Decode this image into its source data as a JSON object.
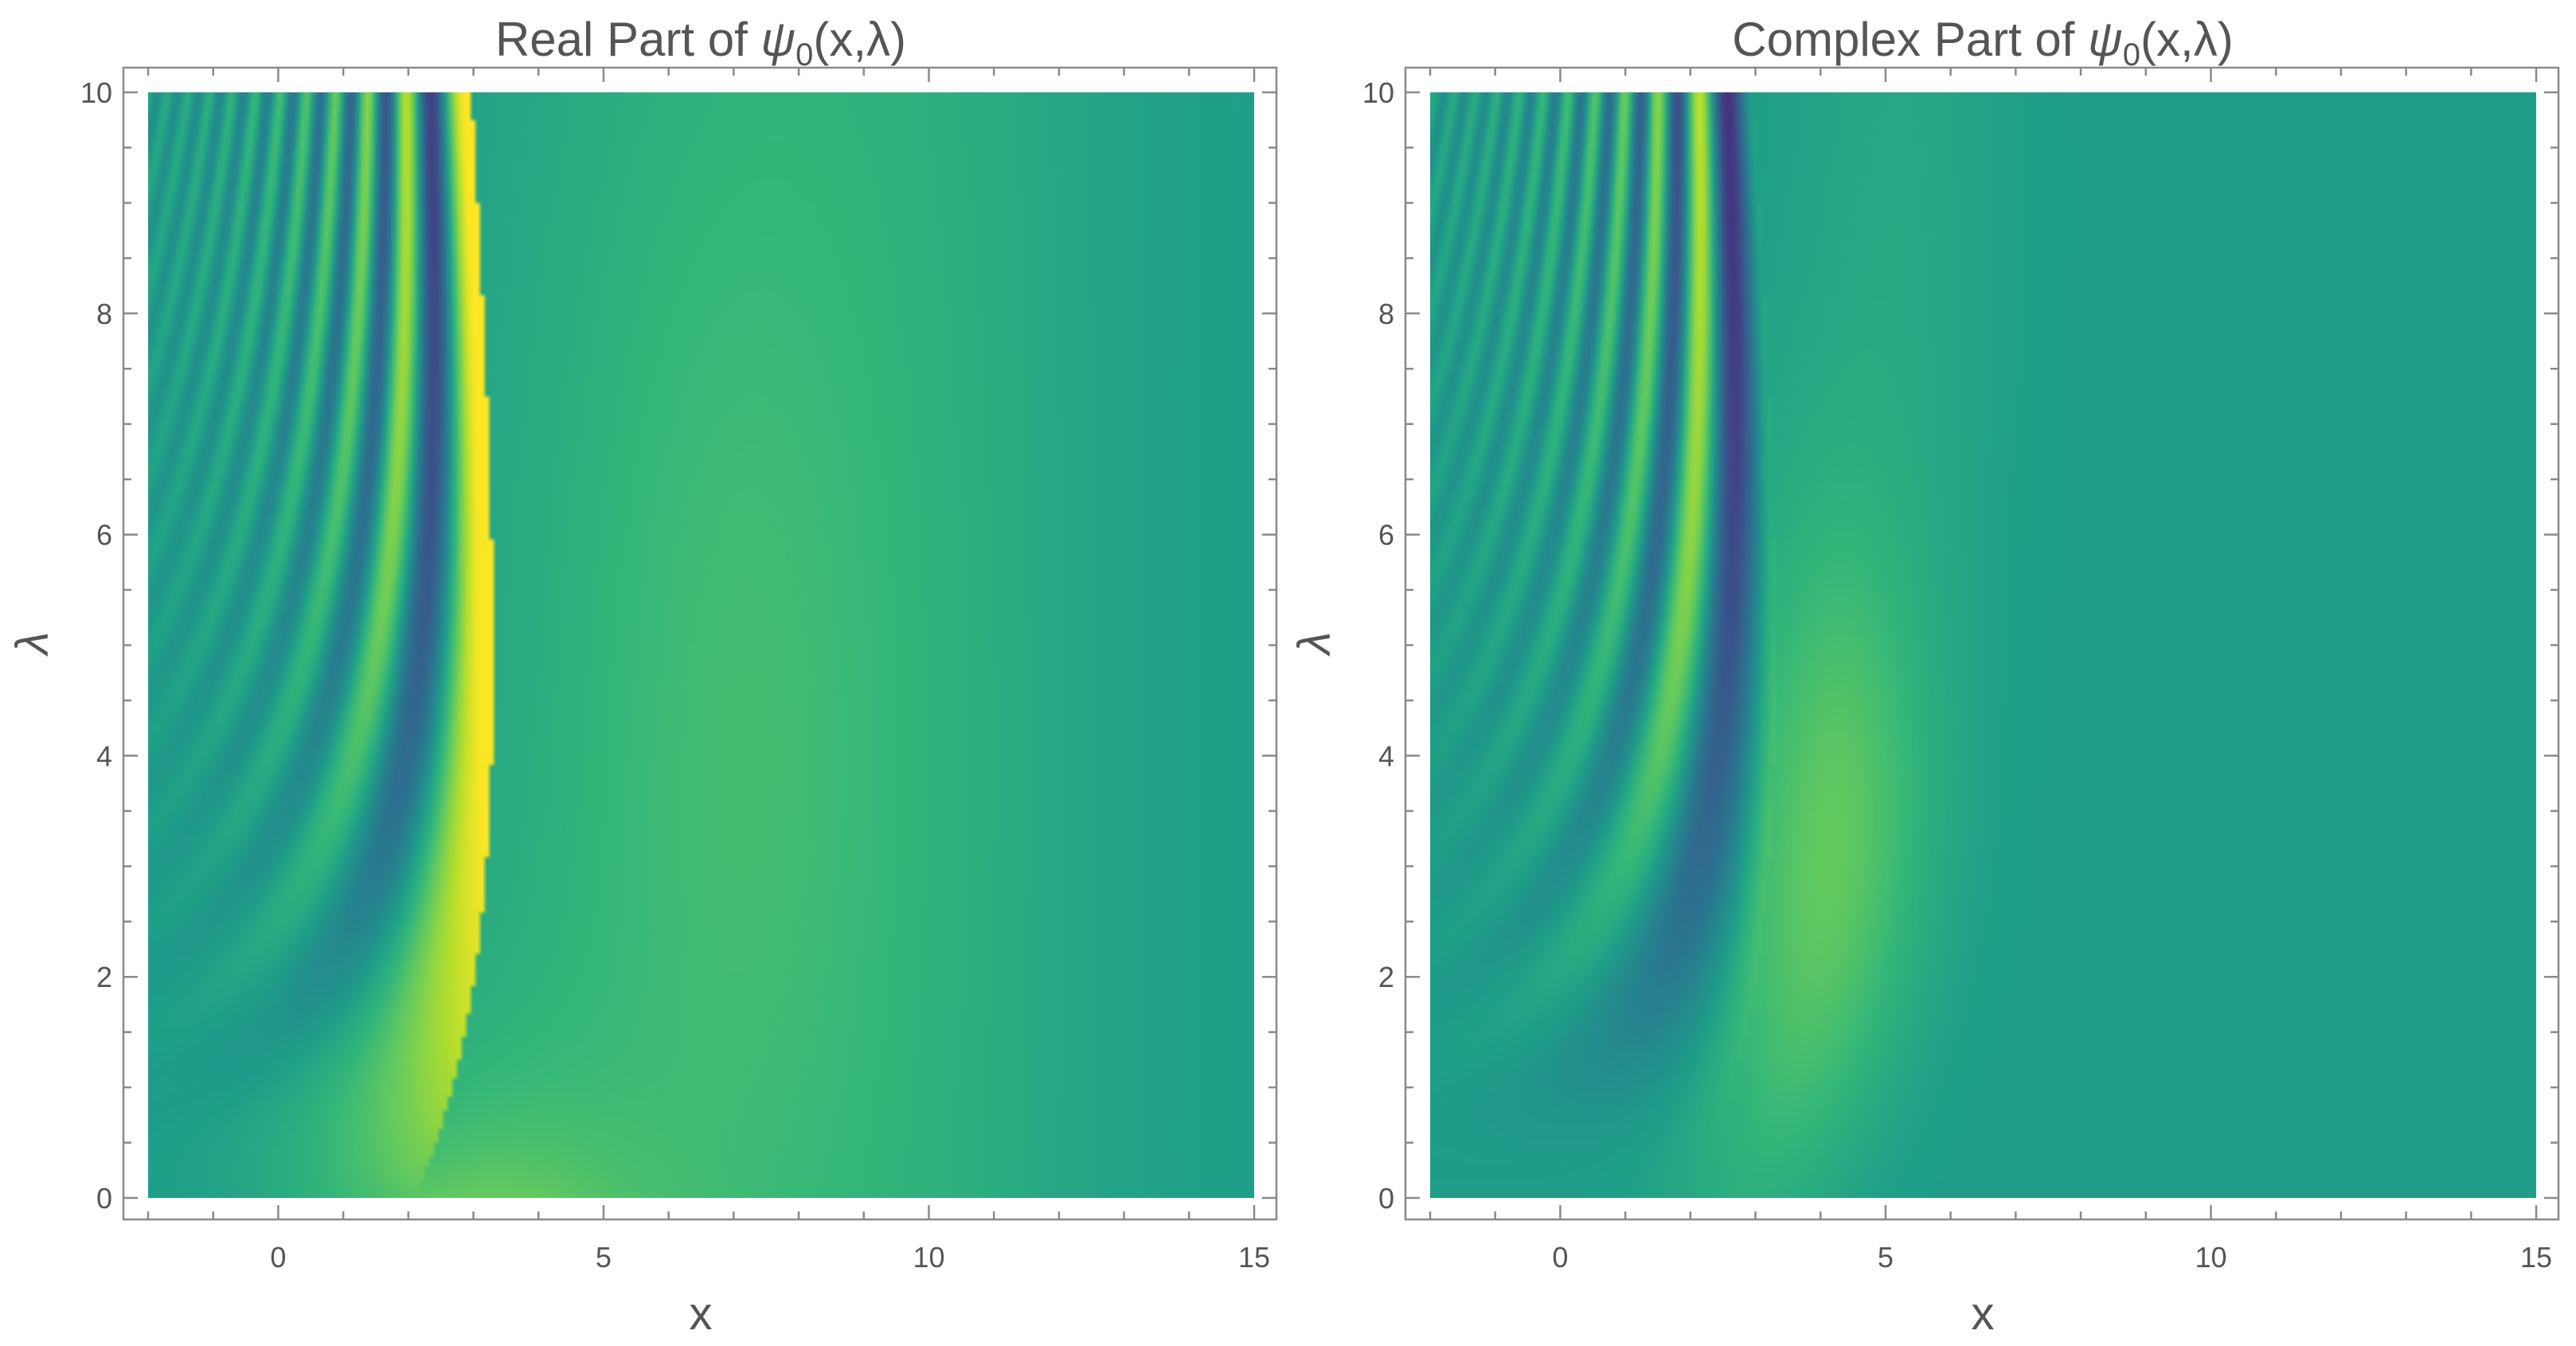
{
  "chart_data": [
    {
      "type": "heatmap",
      "title_prefix": "Real Part of ",
      "title_math": "ψ",
      "title_sub": "0",
      "title_suffix": "(x,λ)",
      "xlabel": "x",
      "ylabel": "λ",
      "xlim": [
        -2,
        15
      ],
      "ylim": [
        0,
        10
      ],
      "x_ticks": [
        "0",
        "5",
        "10",
        "15"
      ],
      "y_ticks": [
        "0",
        "2",
        "4",
        "6",
        "8",
        "10"
      ],
      "colormap": "viridis",
      "component": "real"
    },
    {
      "type": "heatmap",
      "title_prefix": "Complex Part of ",
      "title_math": "ψ",
      "title_sub": "0",
      "title_suffix": "(x,λ)",
      "xlabel": "x",
      "ylabel": "λ",
      "xlim": [
        -2,
        15
      ],
      "ylim": [
        0,
        10
      ],
      "x_ticks": [
        "0",
        "5",
        "10",
        "15"
      ],
      "y_ticks": [
        "0",
        "2",
        "4",
        "6",
        "8",
        "10"
      ],
      "colormap": "viridis",
      "component": "imaginary"
    }
  ]
}
